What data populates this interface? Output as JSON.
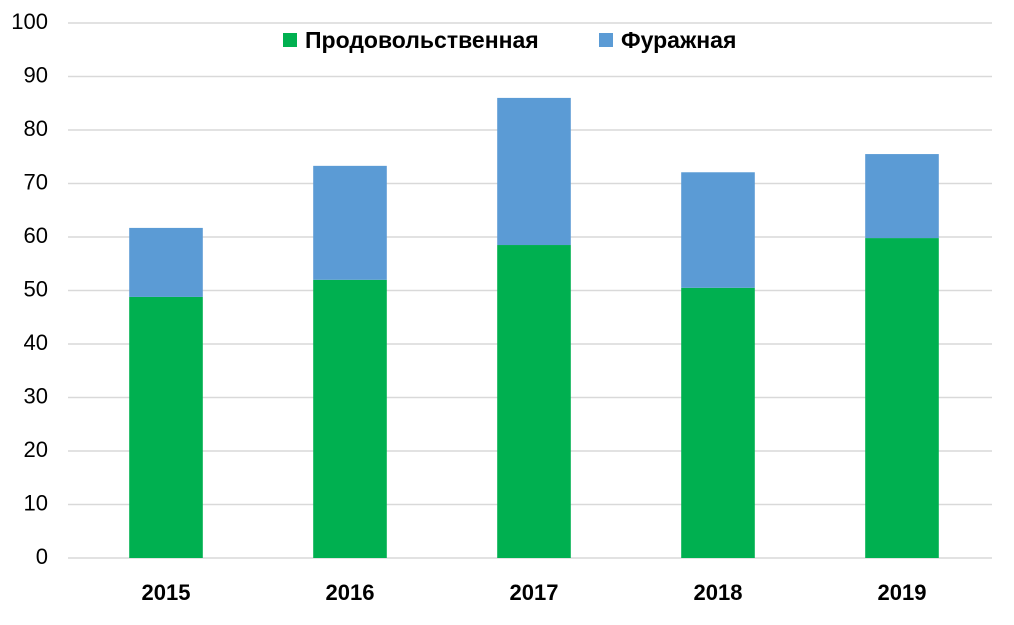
{
  "chart_data": {
    "type": "stacked_bar",
    "categories": [
      "2015",
      "2016",
      "2017",
      "2018",
      "2019"
    ],
    "series": [
      {
        "name": "Продовольственная",
        "color": "#00b050",
        "values": [
          48.8,
          52.0,
          58.5,
          50.5,
          59.8
        ]
      },
      {
        "name": "Фуражная",
        "color": "#5b9bd5",
        "values": [
          12.9,
          21.3,
          27.5,
          21.6,
          15.7
        ]
      }
    ],
    "ylim": [
      0,
      100
    ],
    "yticks": [
      0,
      10,
      20,
      30,
      40,
      50,
      60,
      70,
      80,
      90,
      100
    ],
    "grid": true
  }
}
